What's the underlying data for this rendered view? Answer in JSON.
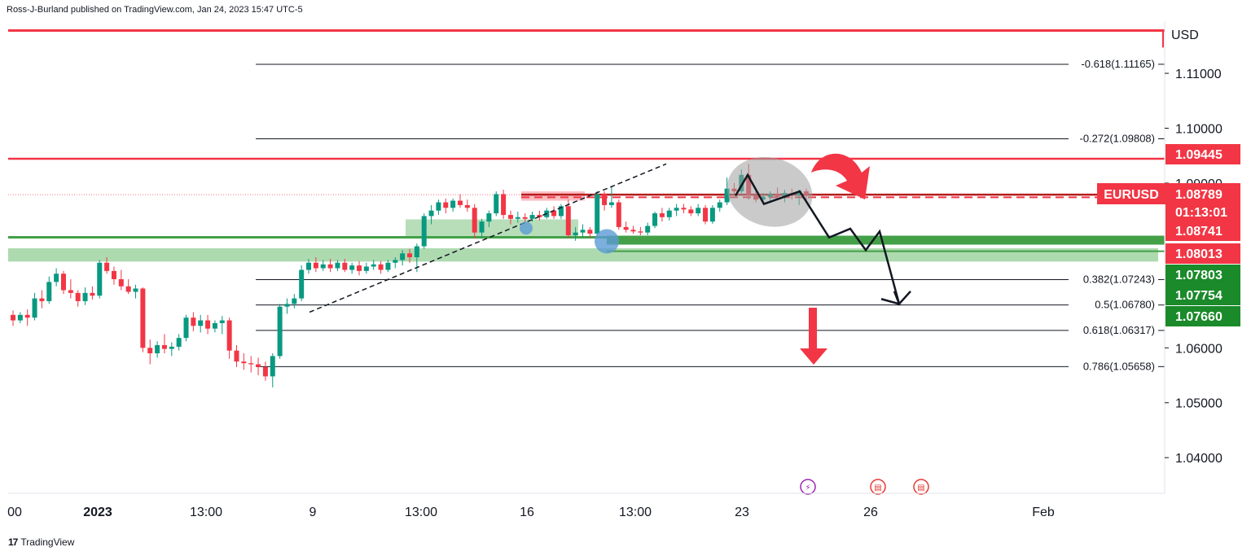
{
  "header": {
    "published": "Ross-J-Burland published on TradingView.com, Jan 24, 2023 15:47 UTC-5"
  },
  "footer": {
    "logo": "17",
    "brand": "TradingView"
  },
  "colors": {
    "bull": "#26a69a",
    "bullBody": "#089981",
    "bear": "#f23645",
    "support": "#43a047",
    "supportZone": "#a5d6a7",
    "resistance": "#f23645",
    "fib": "#131722",
    "grid": "#e0e3eb",
    "ellipse": "#9e9e9e",
    "marker": "#5b9bd5"
  },
  "chart_data": {
    "type": "candlestick",
    "symbol": "EURUSD",
    "currency": "USD",
    "ylim": [
      1.0335,
      1.1195
    ],
    "y_ticks": [
      "1.11000",
      "1.10000",
      "1.09000",
      "1.06000",
      "1.05000",
      "1.04000"
    ],
    "x_ticks": [
      "00",
      "2023",
      "13:00",
      "9",
      "13:00",
      "16",
      "13:00",
      "23",
      "26",
      "Feb"
    ],
    "candles": [
      [
        1.066,
        1.0668,
        1.064,
        1.065
      ],
      [
        1.065,
        1.0665,
        1.0645,
        1.066
      ],
      [
        1.066,
        1.067,
        1.064,
        1.0655
      ],
      [
        1.0655,
        1.07,
        1.065,
        1.069
      ],
      [
        1.069,
        1.0705,
        1.0672,
        1.0685
      ],
      [
        1.0685,
        1.073,
        1.068,
        1.072
      ],
      [
        1.072,
        1.0745,
        1.0712,
        1.0735
      ],
      [
        1.0735,
        1.074,
        1.0698,
        1.0705
      ],
      [
        1.0705,
        1.0725,
        1.069,
        1.07
      ],
      [
        1.07,
        1.0705,
        1.0675,
        1.0685
      ],
      [
        1.0685,
        1.071,
        1.0678,
        1.07
      ],
      [
        1.07,
        1.0712,
        1.0688,
        1.0695
      ],
      [
        1.0695,
        1.076,
        1.069,
        1.0755
      ],
      [
        1.0755,
        1.0765,
        1.0735,
        1.074
      ],
      [
        1.074,
        1.0748,
        1.0715,
        1.0725
      ],
      [
        1.0725,
        1.0742,
        1.0705,
        1.0712
      ],
      [
        1.0712,
        1.0725,
        1.0698,
        1.0702
      ],
      [
        1.0702,
        1.0715,
        1.069,
        1.0708
      ],
      [
        1.0708,
        1.071,
        1.0592,
        1.06
      ],
      [
        1.06,
        1.0615,
        1.057,
        1.059
      ],
      [
        1.059,
        1.0612,
        1.0582,
        1.0605
      ],
      [
        1.0605,
        1.0625,
        1.059,
        1.0598
      ],
      [
        1.0598,
        1.061,
        1.0585,
        1.0602
      ],
      [
        1.0602,
        1.0625,
        1.0595,
        1.0618
      ],
      [
        1.0618,
        1.066,
        1.0612,
        1.0655
      ],
      [
        1.0655,
        1.0665,
        1.063,
        1.064
      ],
      [
        1.064,
        1.066,
        1.0628,
        1.065
      ],
      [
        1.065,
        1.066,
        1.0625,
        1.0635
      ],
      [
        1.0635,
        1.065,
        1.0628,
        1.0645
      ],
      [
        1.0645,
        1.0658,
        1.0625,
        1.065
      ],
      [
        1.065,
        1.0655,
        1.058,
        1.0595
      ],
      [
        1.0595,
        1.0605,
        1.0565,
        1.0575
      ],
      [
        1.0575,
        1.059,
        1.056,
        1.0572
      ],
      [
        1.0572,
        1.0585,
        1.0555,
        1.057
      ],
      [
        1.057,
        1.0582,
        1.055,
        1.0565
      ],
      [
        1.0565,
        1.0575,
        1.054,
        1.0548
      ],
      [
        1.0548,
        1.059,
        1.0528,
        1.0585
      ],
      [
        1.0585,
        1.068,
        1.058,
        1.0675
      ],
      [
        1.0675,
        1.069,
        1.0662,
        1.068
      ],
      [
        1.068,
        1.0698,
        1.0672,
        1.069
      ],
      [
        1.069,
        1.075,
        1.0685,
        1.0742
      ],
      [
        1.0742,
        1.0762,
        1.0735,
        1.0755
      ],
      [
        1.0755,
        1.0765,
        1.0738,
        1.0745
      ],
      [
        1.0745,
        1.076,
        1.074,
        1.0752
      ],
      [
        1.0752,
        1.0762,
        1.0738,
        1.0745
      ],
      [
        1.0745,
        1.076,
        1.074,
        1.0755
      ],
      [
        1.0755,
        1.0762,
        1.0738,
        1.0742
      ],
      [
        1.0742,
        1.0755,
        1.0735,
        1.075
      ],
      [
        1.075,
        1.0758,
        1.0732,
        1.074
      ],
      [
        1.074,
        1.0755,
        1.0735,
        1.0748
      ],
      [
        1.0748,
        1.076,
        1.0742,
        1.0752
      ],
      [
        1.0752,
        1.0758,
        1.0735,
        1.0742
      ],
      [
        1.0742,
        1.076,
        1.0738,
        1.0755
      ],
      [
        1.0755,
        1.0765,
        1.0745,
        1.076
      ],
      [
        1.076,
        1.0778,
        1.075,
        1.0772
      ],
      [
        1.0772,
        1.078,
        1.0755,
        1.0765
      ],
      [
        1.0765,
        1.079,
        1.0738,
        1.0785
      ],
      [
        1.0785,
        1.0845,
        1.078,
        1.084
      ],
      [
        1.084,
        1.086,
        1.0825,
        1.085
      ],
      [
        1.085,
        1.087,
        1.0842,
        1.0865
      ],
      [
        1.0865,
        1.0872,
        1.0845,
        1.0855
      ],
      [
        1.0855,
        1.0872,
        1.0848,
        1.0868
      ],
      [
        1.0868,
        1.088,
        1.0855,
        1.086
      ],
      [
        1.086,
        1.087,
        1.0848,
        1.0855
      ],
      [
        1.0855,
        1.0862,
        1.08,
        1.081
      ],
      [
        1.081,
        1.0835,
        1.08,
        1.083
      ],
      [
        1.083,
        1.085,
        1.082,
        1.0845
      ],
      [
        1.0845,
        1.0885,
        1.084,
        1.088
      ],
      [
        1.088,
        1.0888,
        1.0835,
        1.0842
      ],
      [
        1.0842,
        1.085,
        1.0825,
        1.0835
      ],
      [
        1.0835,
        1.0848,
        1.0828,
        1.0838
      ],
      [
        1.0838,
        1.0845,
        1.0828,
        1.0835
      ],
      [
        1.0835,
        1.0848,
        1.083,
        1.0842
      ],
      [
        1.0842,
        1.085,
        1.0832,
        1.0838
      ],
      [
        1.0838,
        1.0855,
        1.0835,
        1.085
      ],
      [
        1.085,
        1.0858,
        1.0835,
        1.084
      ],
      [
        1.084,
        1.0862,
        1.0835,
        1.0858
      ],
      [
        1.0858,
        1.087,
        1.08,
        1.0805
      ],
      [
        1.0805,
        1.082,
        1.0795,
        1.081
      ],
      [
        1.081,
        1.0825,
        1.08,
        1.0815
      ],
      [
        1.0815,
        1.082,
        1.08,
        1.0808
      ],
      [
        1.0808,
        1.0885,
        1.08,
        1.088
      ],
      [
        1.088,
        1.0885,
        1.085,
        1.086
      ],
      [
        1.086,
        1.0895,
        1.0855,
        1.0865
      ],
      [
        1.0865,
        1.087,
        1.0815,
        1.082
      ],
      [
        1.082,
        1.083,
        1.081,
        1.0815
      ],
      [
        1.0815,
        1.0822,
        1.0808,
        1.0812
      ],
      [
        1.0812,
        1.082,
        1.0805,
        1.081
      ],
      [
        1.081,
        1.0828,
        1.0805,
        1.0822
      ],
      [
        1.0822,
        1.0848,
        1.0818,
        1.0845
      ],
      [
        1.0845,
        1.0855,
        1.083,
        1.0838
      ],
      [
        1.0838,
        1.0855,
        1.0832,
        1.085
      ],
      [
        1.085,
        1.0862,
        1.084,
        1.0855
      ],
      [
        1.0855,
        1.0862,
        1.0845,
        1.0852
      ],
      [
        1.0852,
        1.0858,
        1.084,
        1.0845
      ],
      [
        1.0845,
        1.0862,
        1.084,
        1.0855
      ],
      [
        1.0855,
        1.086,
        1.0825,
        1.083
      ],
      [
        1.083,
        1.086,
        1.0826,
        1.0855
      ],
      [
        1.0855,
        1.087,
        1.0848,
        1.0865
      ],
      [
        1.0865,
        1.091,
        1.086,
        1.089
      ],
      [
        1.089,
        1.09,
        1.088,
        1.0885
      ],
      [
        1.0885,
        1.0925,
        1.088,
        1.0915
      ],
      [
        1.0915,
        1.0935,
        1.087,
        1.0878
      ],
      [
        1.0878,
        1.0885,
        1.0865,
        1.087
      ],
      [
        1.087,
        1.0882,
        1.0862,
        1.0875
      ],
      [
        1.0875,
        1.0885,
        1.0865,
        1.088
      ],
      [
        1.088,
        1.0892,
        1.087,
        1.0875
      ],
      [
        1.0875,
        1.0888,
        1.0865,
        1.0882
      ],
      [
        1.0882,
        1.089,
        1.087,
        1.0878
      ],
      [
        1.0878,
        1.0888,
        1.086,
        1.0885
      ],
      [
        1.0885,
        1.089,
        1.0865,
        1.0879
      ]
    ],
    "levels": {
      "resistance_major": 1.09445,
      "resistance_top": 1.1178,
      "last_price": 1.08789,
      "dashed": 1.08741,
      "support_a": 1.08013,
      "support_b": 1.07803,
      "zone_low": 1.0766,
      "zone_high": 1.07754
    },
    "fib_levels": [
      {
        "label": "-0.618(1.11165)",
        "value": 1.11165
      },
      {
        "label": "-0.272(1.09808)",
        "value": 1.09808
      },
      {
        "label": "0.382(1.07243)",
        "value": 1.07243
      },
      {
        "label": "0.5(1.06780)",
        "value": 1.0678
      },
      {
        "label": "0.618(1.06317)",
        "value": 1.06317
      },
      {
        "label": "0.786(1.05658)",
        "value": 1.05658
      }
    ],
    "price_tags": [
      {
        "label": "1.09445",
        "value": 1.09445,
        "color": "#f23645"
      },
      {
        "label": "1.08789",
        "value": 1.08789,
        "color": "#f23645",
        "symbol": "EURUSD",
        "countdown": "01:13:01"
      },
      {
        "label": "1.08741",
        "value": 1.08741,
        "color": "#f23645"
      },
      {
        "label": "1.08013",
        "value": 1.08013,
        "color": "#f23645"
      },
      {
        "label": "1.07803",
        "value": 1.07803,
        "color": "#1b8a2a"
      },
      {
        "label": "1.07754",
        "value": 1.07754,
        "color": "#1b8a2a"
      },
      {
        "label": "1.07660",
        "value": 1.0766,
        "color": "#1b8a2a"
      }
    ],
    "legend": "none",
    "grid": false
  }
}
